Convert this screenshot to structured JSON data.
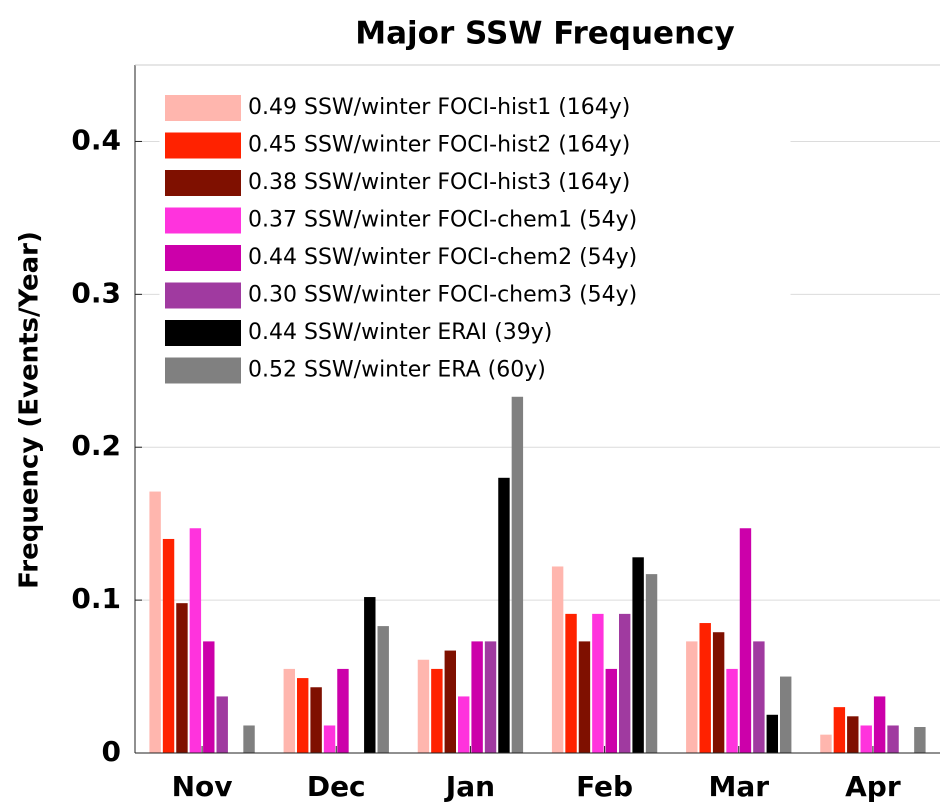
{
  "chart_data": {
    "type": "bar",
    "title": "Major SSW Frequency",
    "y_label": "Frequency (Events/Year)",
    "categories": [
      "Nov",
      "Dec",
      "Jan",
      "Feb",
      "Mar",
      "Apr"
    ],
    "series": [
      {
        "name": "0.49 SSW/winter FOCI-hist1 (164y)",
        "color": "#ffb6ae",
        "values": [
          0.171,
          0.055,
          0.061,
          0.122,
          0.073,
          0.012
        ]
      },
      {
        "name": "0.45 SSW/winter FOCI-hist2 (164y)",
        "color": "#ff2200",
        "values": [
          0.14,
          0.049,
          0.055,
          0.091,
          0.085,
          0.03
        ]
      },
      {
        "name": "0.38 SSW/winter FOCI-hist3 (164y)",
        "color": "#7f1000",
        "values": [
          0.098,
          0.043,
          0.067,
          0.073,
          0.079,
          0.024
        ]
      },
      {
        "name": "0.37 SSW/winter FOCI-chem1 (54y)",
        "color": "#ff33dd",
        "values": [
          0.147,
          0.018,
          0.037,
          0.091,
          0.055,
          0.018
        ]
      },
      {
        "name": "0.44 SSW/winter FOCI-chem2 (54y)",
        "color": "#cc00aa",
        "values": [
          0.073,
          0.055,
          0.073,
          0.055,
          0.147,
          0.037
        ]
      },
      {
        "name": "0.30 SSW/winter FOCI-chem3 (54y)",
        "color": "#a03aa0",
        "values": [
          0.037,
          0,
          0.073,
          0.091,
          0.073,
          0.018
        ]
      },
      {
        "name": "0.44 SSW/winter ERAI (39y)",
        "color": "#000000",
        "values": [
          0,
          0.102,
          0.18,
          0.128,
          0.025,
          0
        ]
      },
      {
        "name": "0.52 SSW/winter ERA (60y)",
        "color": "#808080",
        "values": [
          0.018,
          0.083,
          0.233,
          0.117,
          0.05,
          0.017
        ]
      }
    ],
    "ylim": [
      0,
      0.45
    ],
    "yticks": [
      0,
      0.1,
      0.2,
      0.3,
      0.4
    ],
    "grid": true,
    "legend": "upper left"
  }
}
